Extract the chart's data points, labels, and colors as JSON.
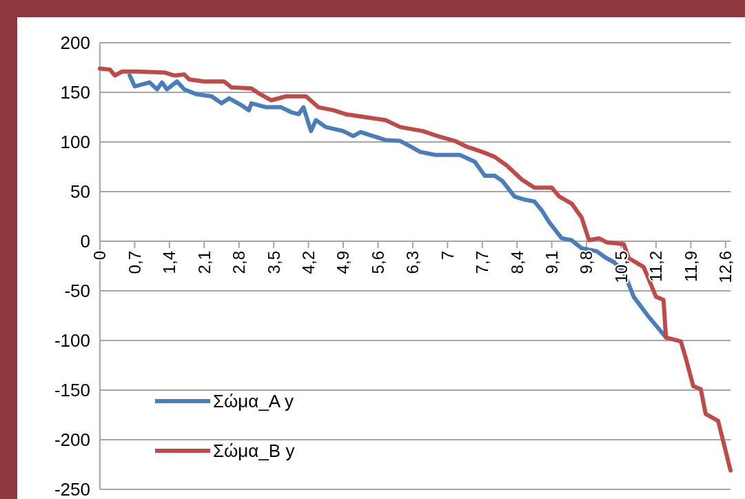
{
  "chart_data": {
    "type": "line",
    "xlim": [
      0,
      12.7
    ],
    "ylim": [
      -250,
      200
    ],
    "xticks": [
      {
        "value": 0,
        "label": "0"
      },
      {
        "value": 0.7,
        "label": "0,7"
      },
      {
        "value": 1.4,
        "label": "1,4"
      },
      {
        "value": 2.1,
        "label": "2,1"
      },
      {
        "value": 2.8,
        "label": "2,8"
      },
      {
        "value": 3.5,
        "label": "3,5"
      },
      {
        "value": 4.2,
        "label": "4,2"
      },
      {
        "value": 4.9,
        "label": "4,9"
      },
      {
        "value": 5.6,
        "label": "5,6"
      },
      {
        "value": 6.3,
        "label": "6,3"
      },
      {
        "value": 7,
        "label": "7"
      },
      {
        "value": 7.7,
        "label": "7,7"
      },
      {
        "value": 8.4,
        "label": "8,4"
      },
      {
        "value": 9.1,
        "label": "9,1"
      },
      {
        "value": 9.8,
        "label": "9,8"
      },
      {
        "value": 10.5,
        "label": "10,5"
      },
      {
        "value": 11.2,
        "label": "11,2"
      },
      {
        "value": 11.9,
        "label": "11,9"
      },
      {
        "value": 12.6,
        "label": "12,6"
      }
    ],
    "yticks": [
      -250,
      -200,
      -150,
      -100,
      -50,
      0,
      50,
      100,
      150,
      200
    ],
    "grid": "y",
    "legend": "bottom left",
    "line_style": "solid",
    "marker": "none",
    "series": [
      {
        "name": "Σώμα_A y",
        "color": "#4a7ebb",
        "x": [
          0.6,
          0.7,
          1.0,
          1.15,
          1.25,
          1.35,
          1.55,
          1.7,
          1.95,
          2.25,
          2.45,
          2.6,
          2.85,
          3.0,
          3.05,
          3.35,
          3.65,
          3.85,
          4.0,
          4.1,
          4.25,
          4.35,
          4.55,
          4.9,
          5.1,
          5.25,
          5.5,
          5.75,
          6.05,
          6.2,
          6.45,
          6.75,
          7.25,
          7.55,
          7.75,
          7.95,
          8.1,
          8.35,
          8.55,
          8.75,
          8.9,
          9.05,
          9.3,
          9.5,
          9.7,
          10.0,
          10.2,
          10.35,
          10.55,
          10.75,
          11.05,
          11.4
        ],
        "values": [
          167,
          156,
          160,
          153,
          160,
          153,
          161,
          153,
          148,
          146,
          139,
          144,
          137,
          132,
          139,
          135,
          135,
          130,
          128,
          135,
          111,
          122,
          115,
          111,
          106,
          110,
          106,
          102,
          101,
          97,
          90,
          87,
          87,
          80,
          66,
          66,
          61,
          45,
          42,
          40,
          31,
          19,
          3,
          1,
          -7,
          -10,
          -17,
          -21,
          -31,
          -56,
          -76,
          -97
        ]
      },
      {
        "name": "Σώμα_B y",
        "color": "#be4b48",
        "x": [
          0,
          0.2,
          0.3,
          0.45,
          0.75,
          1.3,
          1.5,
          1.7,
          1.8,
          2.1,
          2.5,
          2.65,
          3.05,
          3.2,
          3.45,
          3.75,
          4.15,
          4.4,
          4.7,
          4.95,
          5.35,
          5.75,
          6.05,
          6.5,
          6.8,
          7.15,
          7.4,
          7.7,
          7.95,
          8.2,
          8.5,
          8.75,
          9.1,
          9.25,
          9.5,
          9.7,
          9.85,
          10.05,
          10.2,
          10.55,
          10.65,
          10.95,
          11.2,
          11.35,
          11.4,
          11.7,
          11.8,
          11.95,
          12.1,
          12.2,
          12.45,
          12.55,
          12.7
        ],
        "values": [
          174,
          173,
          167,
          171,
          171,
          170,
          167,
          168,
          163,
          161,
          161,
          155,
          154,
          149,
          142,
          146,
          146,
          135,
          132,
          128,
          125,
          122,
          115,
          111,
          106,
          101,
          95,
          90,
          85,
          76,
          62,
          54,
          54,
          45,
          38,
          24,
          1,
          3,
          -1,
          -3,
          -17,
          -26,
          -56,
          -59,
          -97,
          -101,
          -118,
          -146,
          -149,
          -174,
          -181,
          -201,
          -231
        ]
      }
    ]
  }
}
